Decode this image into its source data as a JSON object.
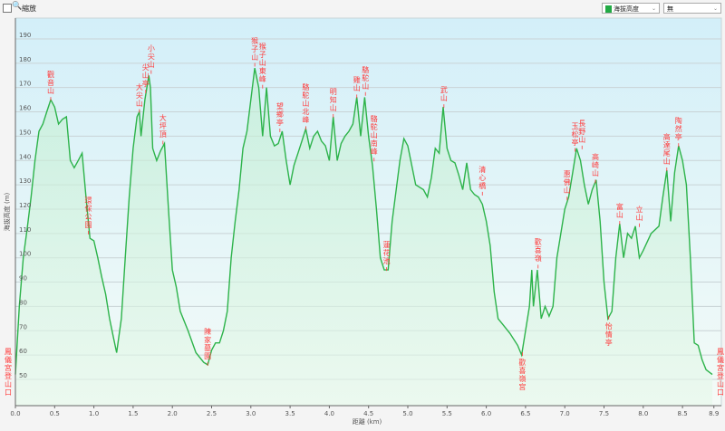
{
  "toolbar": {
    "zoom_label": "縮放",
    "series_select": "海拔高度",
    "second_select": "無",
    "series_color": "#22aa44"
  },
  "chart_data": {
    "type": "area",
    "title": "",
    "xlabel": "距離 (km)",
    "ylabel": "海拔高度 (m)",
    "xlim": [
      0,
      8.9
    ],
    "ylim": [
      39,
      198
    ],
    "xticks": [
      "0.0",
      "0.5",
      "1.0",
      "1.5",
      "2.0",
      "2.5",
      "3.0",
      "3.5",
      "4.0",
      "4.5",
      "5.0",
      "5.5",
      "6.0",
      "6.5",
      "7.0",
      "7.5",
      "8.0",
      "8.5",
      "8.9"
    ],
    "yticks": [
      "50",
      "60",
      "70",
      "80",
      "90",
      "100",
      "110",
      "120",
      "130",
      "140",
      "150",
      "160",
      "170",
      "180",
      "190"
    ],
    "grid": true,
    "line_color": "#2db34a",
    "series": [
      {
        "x": [
          0,
          0.05,
          0.1,
          0.15,
          0.2,
          0.25,
          0.3,
          0.35,
          0.4,
          0.45,
          0.5,
          0.55,
          0.6,
          0.65,
          0.7,
          0.75,
          0.8,
          0.85,
          0.9,
          0.95,
          1.0,
          1.05,
          1.1,
          1.15,
          1.2,
          1.25,
          1.29,
          1.35,
          1.4,
          1.45,
          1.5,
          1.55,
          1.58,
          1.6,
          1.65,
          1.7,
          1.72,
          1.75,
          1.8,
          1.85,
          1.9,
          1.95,
          2.0,
          2.05,
          2.1,
          2.2,
          2.3,
          2.4,
          2.45,
          2.5,
          2.55,
          2.6,
          2.65,
          2.7,
          2.75,
          2.8,
          2.85,
          2.9,
          2.95,
          3.0,
          3.05,
          3.1,
          3.15,
          3.2,
          3.25,
          3.3,
          3.35,
          3.4,
          3.45,
          3.5,
          3.55,
          3.6,
          3.65,
          3.7,
          3.75,
          3.8,
          3.85,
          3.9,
          3.95,
          4.0,
          4.05,
          4.1,
          4.15,
          4.2,
          4.25,
          4.3,
          4.35,
          4.4,
          4.45,
          4.5,
          4.55,
          4.6,
          4.65,
          4.7,
          4.75,
          4.8,
          4.9,
          4.95,
          5.0,
          5.1,
          5.2,
          5.25,
          5.3,
          5.35,
          5.4,
          5.45,
          5.5,
          5.55,
          5.6,
          5.65,
          5.7,
          5.75,
          5.8,
          5.85,
          5.9,
          5.95,
          6.0,
          6.05,
          6.1,
          6.15,
          6.2,
          6.3,
          6.4,
          6.45,
          6.5,
          6.55,
          6.58,
          6.6,
          6.65,
          6.7,
          6.75,
          6.8,
          6.85,
          6.9,
          7.0,
          7.05,
          7.1,
          7.15,
          7.2,
          7.25,
          7.3,
          7.35,
          7.4,
          7.45,
          7.5,
          7.55,
          7.6,
          7.65,
          7.7,
          7.75,
          7.8,
          7.85,
          7.9,
          7.95,
          8.0,
          8.1,
          8.2,
          8.25,
          8.3,
          8.35,
          8.4,
          8.45,
          8.5,
          8.55,
          8.6,
          8.65,
          8.7,
          8.75,
          8.8,
          8.88
        ],
        "y": [
          52,
          80,
          100,
          112,
          125,
          140,
          152,
          155,
          160,
          165,
          162,
          155,
          157,
          158,
          140,
          137,
          140,
          143,
          125,
          108,
          107,
          100,
          92,
          85,
          75,
          67,
          61,
          75,
          100,
          125,
          145,
          158,
          160,
          150,
          165,
          175,
          170,
          145,
          140,
          144,
          147,
          120,
          95,
          88,
          78,
          70,
          61,
          57,
          56,
          62,
          65,
          65,
          70,
          78,
          100,
          115,
          128,
          145,
          152,
          165,
          178,
          170,
          150,
          170,
          150,
          146,
          147,
          152,
          140,
          130,
          138,
          143,
          148,
          153,
          145,
          150,
          152,
          148,
          146,
          140,
          158,
          140,
          147,
          150,
          152,
          155,
          166,
          150,
          166,
          150,
          138,
          120,
          100,
          95,
          95,
          115,
          140,
          149,
          146,
          130,
          128,
          125,
          133,
          145,
          143,
          162,
          145,
          140,
          139,
          134,
          128,
          139,
          128,
          126,
          125,
          122,
          115,
          105,
          86,
          75,
          73,
          69,
          64,
          60,
          70,
          80,
          95,
          80,
          95,
          75,
          80,
          76,
          80,
          100,
          120,
          125,
          135,
          145,
          140,
          130,
          122,
          128,
          132,
          115,
          90,
          75,
          78,
          100,
          114,
          100,
          110,
          108,
          113,
          100,
          103,
          110,
          113,
          125,
          136,
          115,
          135,
          146,
          140,
          130,
          100,
          65,
          64,
          58,
          54,
          52
        ]
      }
    ],
    "annotations": [
      {
        "text": "鳳儀宮登山口",
        "x": 0,
        "y": 52,
        "pos": "start"
      },
      {
        "text": "觀音山",
        "x": 0.45,
        "y": 165,
        "pos": "above"
      },
      {
        "text": "環保公園",
        "x": 0.93,
        "y": 110,
        "pos": "above"
      },
      {
        "text": "大尖山",
        "x": 1.58,
        "y": 160,
        "pos": "above"
      },
      {
        "text": "尖山亭",
        "x": 1.66,
        "y": 168,
        "pos": "above"
      },
      {
        "text": "小尖山",
        "x": 1.73,
        "y": 176,
        "pos": "above"
      },
      {
        "text": "大坪頂",
        "x": 1.88,
        "y": 147,
        "pos": "above"
      },
      {
        "text": "陳家墓園",
        "x": 2.45,
        "y": 56,
        "pos": "above"
      },
      {
        "text": "猴子山",
        "x": 3.05,
        "y": 179,
        "pos": "above"
      },
      {
        "text": "猴子山東峰",
        "x": 3.15,
        "y": 170,
        "pos": "above"
      },
      {
        "text": "望鄉亭",
        "x": 3.37,
        "y": 152,
        "pos": "above"
      },
      {
        "text": "駱駝山北峰",
        "x": 3.7,
        "y": 153,
        "pos": "above"
      },
      {
        "text": "明知山",
        "x": 4.05,
        "y": 158,
        "pos": "above"
      },
      {
        "text": "雞山",
        "x": 4.35,
        "y": 166,
        "pos": "above"
      },
      {
        "text": "駱駝山",
        "x": 4.46,
        "y": 167,
        "pos": "above"
      },
      {
        "text": "駱駝山南峰",
        "x": 4.57,
        "y": 140,
        "pos": "above"
      },
      {
        "text": "蓮花池",
        "x": 4.73,
        "y": 95,
        "pos": "above"
      },
      {
        "text": "武山",
        "x": 5.46,
        "y": 162,
        "pos": "above"
      },
      {
        "text": "清心橋",
        "x": 5.95,
        "y": 126,
        "pos": "above"
      },
      {
        "text": "歡喜嶺宮",
        "x": 6.46,
        "y": 60,
        "pos": "below"
      },
      {
        "text": "歡喜嶺",
        "x": 6.66,
        "y": 96,
        "pos": "above"
      },
      {
        "text": "惠佛山",
        "x": 7.03,
        "y": 124,
        "pos": "above"
      },
      {
        "text": "玉松亭",
        "x": 7.13,
        "y": 144,
        "pos": "above"
      },
      {
        "text": "長野山",
        "x": 7.22,
        "y": 145,
        "pos": "above"
      },
      {
        "text": "高崎山",
        "x": 7.39,
        "y": 131,
        "pos": "above"
      },
      {
        "text": "怡情亭",
        "x": 7.56,
        "y": 75,
        "pos": "below"
      },
      {
        "text": "富山",
        "x": 7.7,
        "y": 114,
        "pos": "above"
      },
      {
        "text": "立山",
        "x": 7.95,
        "y": 113,
        "pos": "above"
      },
      {
        "text": "高達尾山",
        "x": 8.3,
        "y": 136,
        "pos": "above"
      },
      {
        "text": "陶然亭",
        "x": 8.45,
        "y": 146,
        "pos": "above"
      },
      {
        "text": "鳳儀宮登山口",
        "x": 8.88,
        "y": 52,
        "pos": "end"
      }
    ]
  }
}
